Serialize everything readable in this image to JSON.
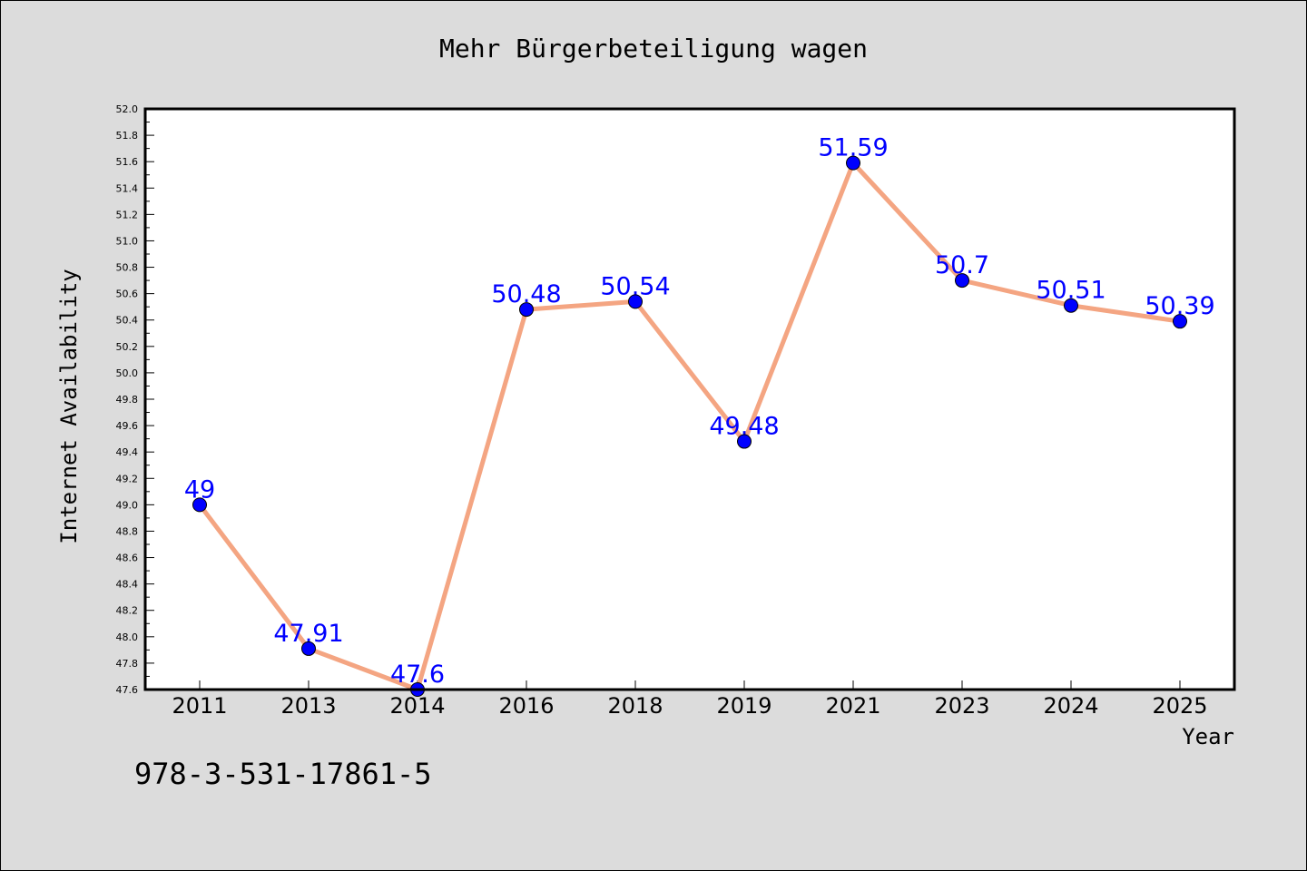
{
  "chart_data": {
    "type": "line",
    "title": "Mehr Bürgerbeteiligung wagen",
    "xlabel": "Year",
    "ylabel": "Internet Availability",
    "categories": [
      "2011",
      "2013",
      "2014",
      "2016",
      "2018",
      "2019",
      "2021",
      "2023",
      "2024",
      "2025"
    ],
    "series": [
      {
        "values": [
          49,
          47.91,
          47.6,
          50.48,
          50.54,
          49.48,
          51.59,
          50.7,
          50.51,
          50.39
        ],
        "data_labels": [
          "49",
          "47.91",
          "47.6",
          "50.48",
          "50.54",
          "49.48",
          "51.59",
          "50.7",
          "50.51",
          "50.39"
        ]
      }
    ],
    "ylim": [
      47.6,
      52.0
    ],
    "y_ticks": [
      "47.6",
      "47.8",
      "48.0",
      "48.2",
      "48.4",
      "48.6",
      "48.8",
      "49.0",
      "49.2",
      "49.4",
      "49.6",
      "49.8",
      "50.0",
      "50.2",
      "50.4",
      "50.6",
      "50.8",
      "51.0",
      "51.2",
      "51.4",
      "51.6",
      "51.8",
      "52.0"
    ],
    "grid": false,
    "legend": "none",
    "annotation": "978-3-531-17861-5",
    "colors": {
      "background": "#dcdcdc",
      "plot_background": "#ffffff",
      "line": "#f4a582",
      "marker": "#0000ff",
      "label": "#0000ff",
      "axis": "#000000"
    }
  }
}
